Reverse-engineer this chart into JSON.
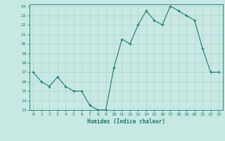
{
  "x": [
    0,
    1,
    2,
    3,
    4,
    5,
    6,
    7,
    8,
    9,
    10,
    11,
    12,
    13,
    14,
    15,
    16,
    17,
    18,
    19,
    20,
    21,
    22,
    23
  ],
  "y": [
    17,
    16,
    15.5,
    16.5,
    15.5,
    15,
    15,
    13.5,
    13,
    13,
    17.5,
    20.5,
    20,
    22,
    23.5,
    22.5,
    22,
    24,
    23.5,
    23,
    22.5,
    19.5,
    17,
    17
  ],
  "line_color": "#1a7a6a",
  "marker": "+",
  "marker_color": "#1a7a6a",
  "bg_color": "#c8e8e4",
  "grid_color": "#b0d4cf",
  "xlabel": "Humidex (Indice chaleur)",
  "ylim": [
    13,
    24
  ],
  "xlim": [
    -0.5,
    23.5
  ],
  "yticks": [
    13,
    14,
    15,
    16,
    17,
    18,
    19,
    20,
    21,
    22,
    23,
    24
  ],
  "xticks": [
    0,
    1,
    2,
    3,
    4,
    5,
    6,
    7,
    8,
    9,
    10,
    11,
    12,
    13,
    14,
    15,
    16,
    17,
    18,
    19,
    20,
    21,
    22,
    23
  ],
  "tick_color": "#1a7a6a",
  "label_color": "#1a7a6a"
}
